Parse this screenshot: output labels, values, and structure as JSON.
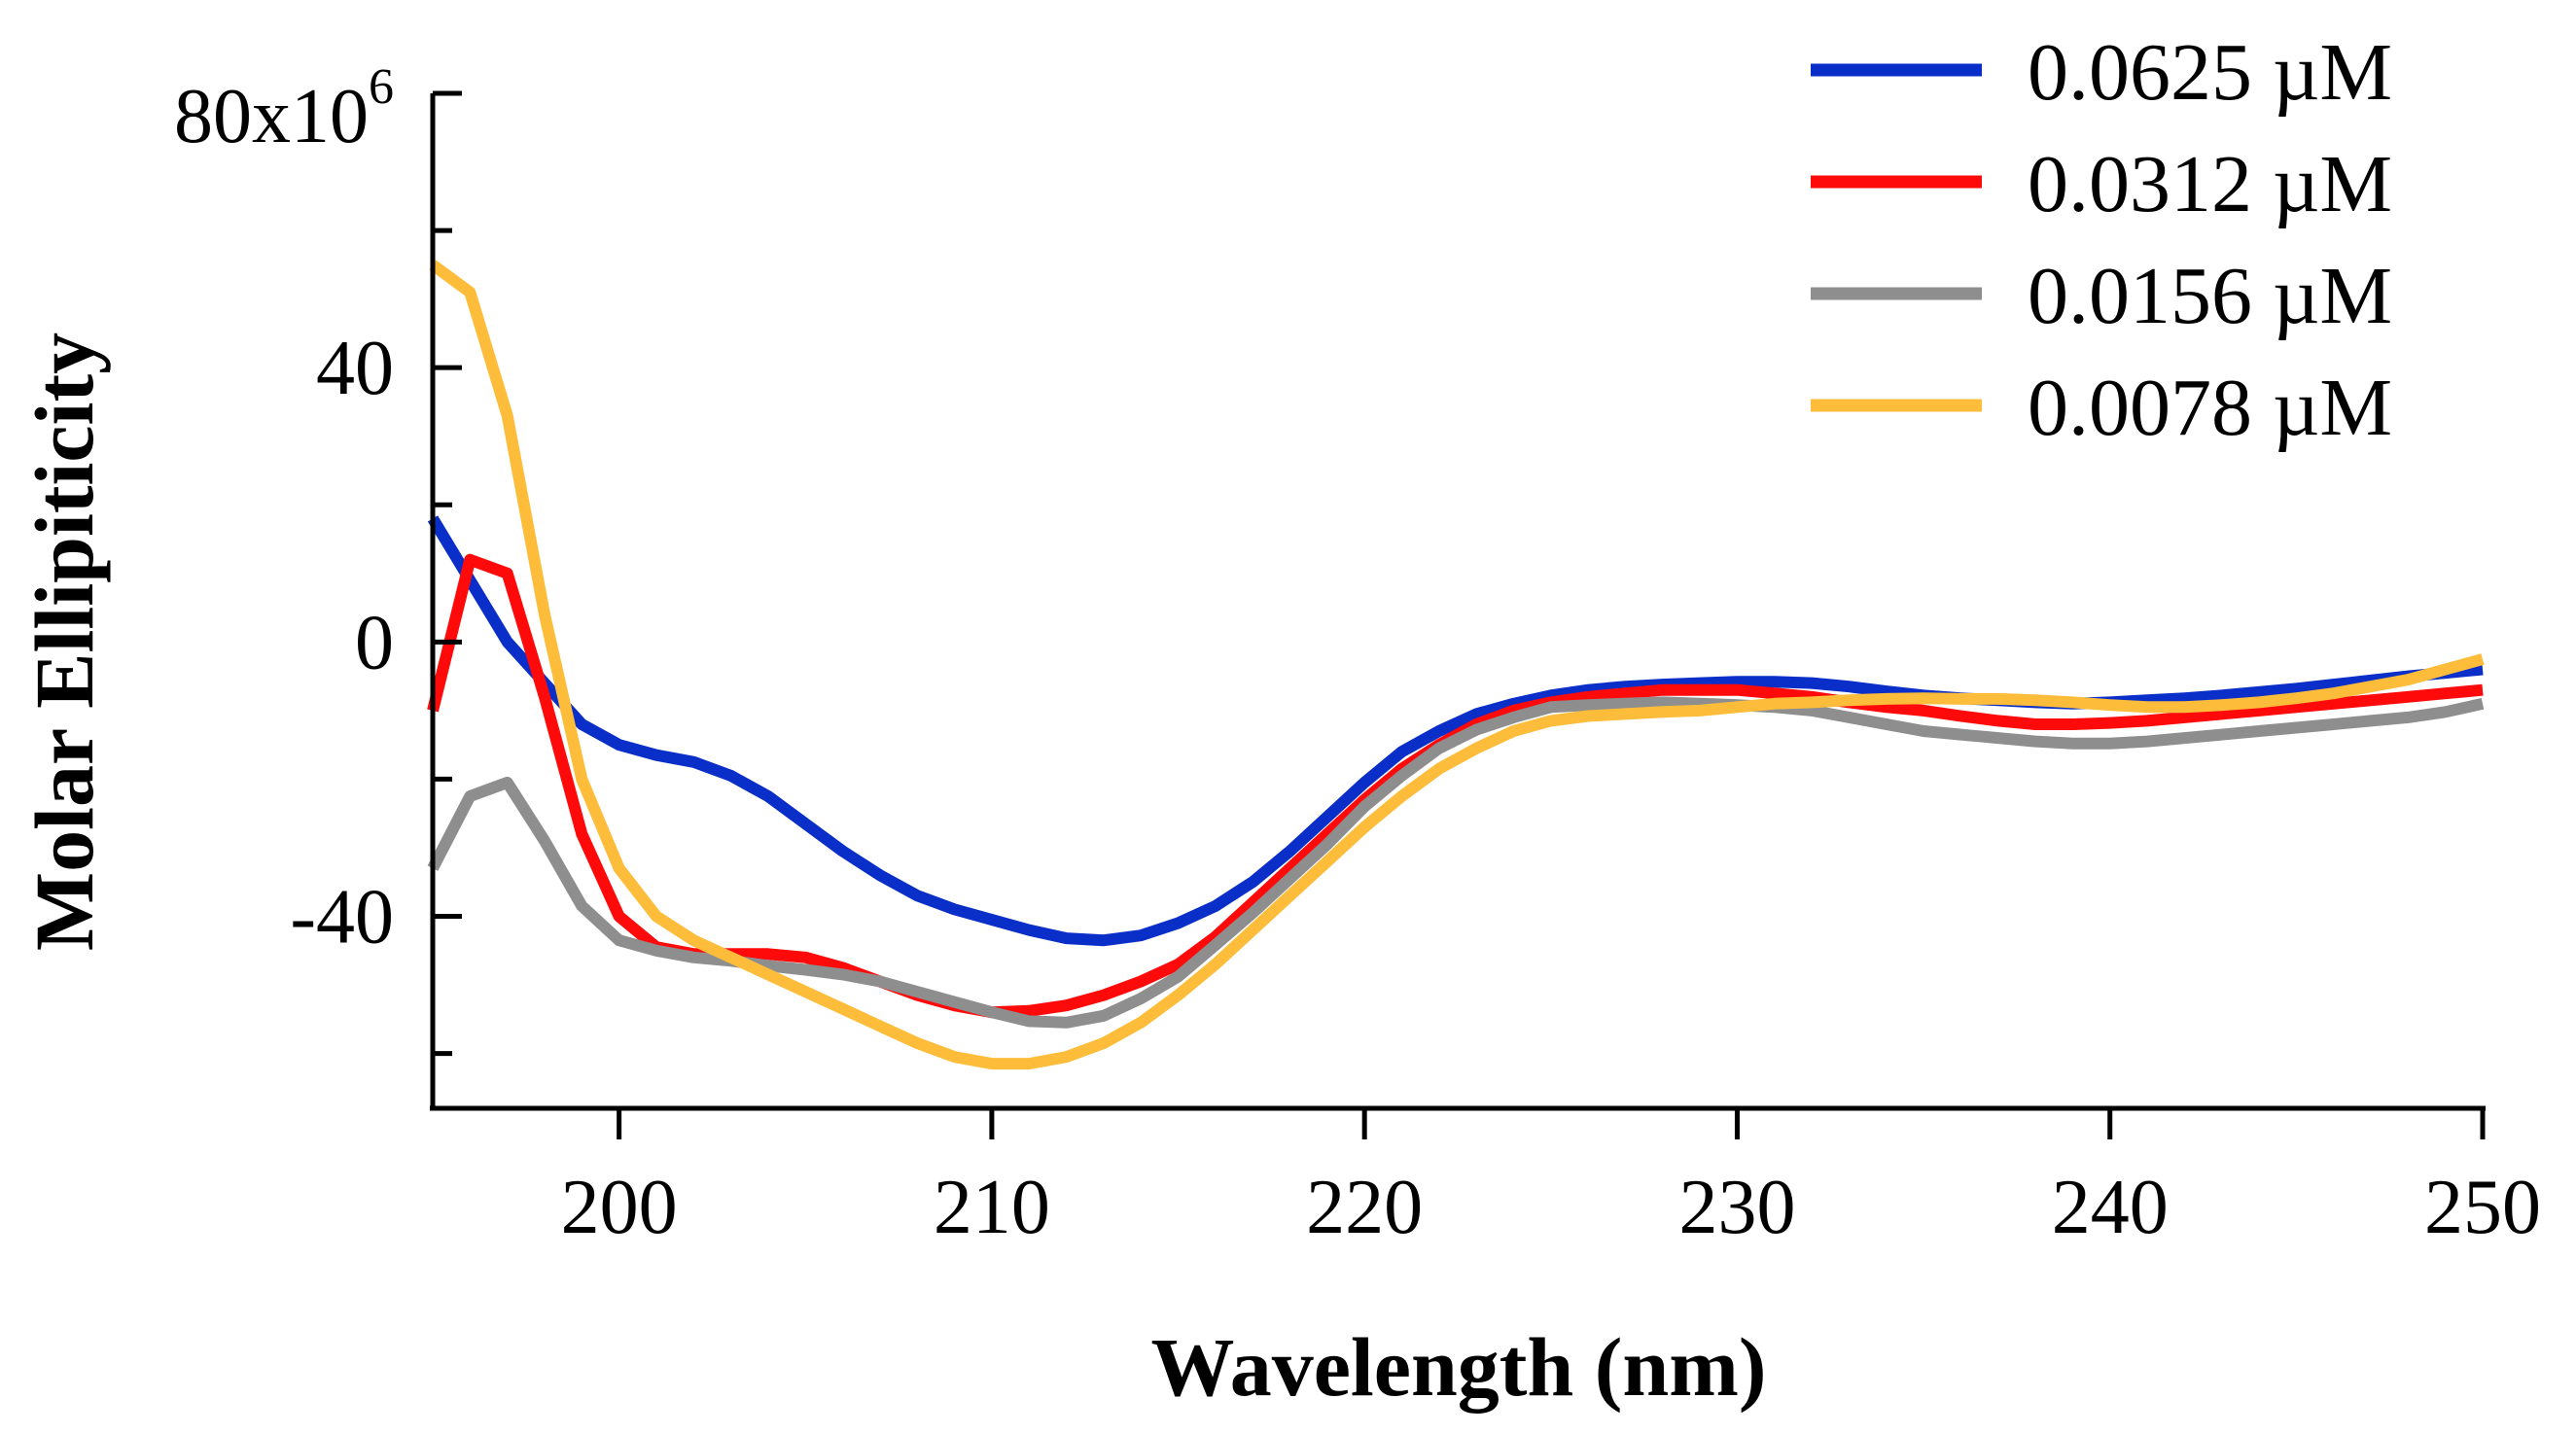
{
  "chart_data": {
    "type": "line",
    "title": "",
    "xlabel": "Wavelength (nm)",
    "ylabel": "Molar Ellipiticity",
    "xlim": [
      195,
      250
    ],
    "ylim": [
      -68,
      80
    ],
    "x_ticks": [
      200,
      210,
      220,
      230,
      240,
      250
    ],
    "x_tick_labels": [
      "200",
      "210",
      "220",
      "230",
      "240",
      "250"
    ],
    "y_ticks_labeled": [
      -40,
      0,
      40,
      80
    ],
    "y_tick_labels": [
      "-40",
      "0",
      "40",
      "80x10"
    ],
    "y_tick_exponent": "6",
    "y_ticks_minor": [
      -60,
      -20,
      20,
      60
    ],
    "legend_position": "top-right",
    "x": [
      195,
      196,
      197,
      198,
      199,
      200,
      201,
      202,
      203,
      204,
      205,
      206,
      207,
      208,
      209,
      210,
      211,
      212,
      213,
      214,
      215,
      216,
      217,
      218,
      219,
      220,
      221,
      222,
      223,
      224,
      225,
      226,
      227,
      228,
      229,
      230,
      231,
      232,
      233,
      234,
      235,
      236,
      237,
      238,
      239,
      240,
      241,
      242,
      243,
      244,
      245,
      246,
      247,
      248,
      249,
      250
    ],
    "series": [
      {
        "name": "0.0625 µM",
        "color": "#0a2ec8",
        "values": [
          18,
          9,
          0,
          -6,
          -12,
          -15,
          -16.5,
          -17.5,
          -19.5,
          -22.5,
          -26.5,
          -30.5,
          -34,
          -37,
          -39,
          -40.5,
          -42,
          -43.2,
          -43.5,
          -42.8,
          -41,
          -38.5,
          -35,
          -30.5,
          -25.5,
          -20.5,
          -16,
          -13,
          -10.5,
          -9,
          -7.8,
          -7,
          -6.5,
          -6.2,
          -6,
          -5.8,
          -5.8,
          -6,
          -6.5,
          -7.2,
          -7.8,
          -8.2,
          -8.5,
          -8.8,
          -9,
          -8.8,
          -8.5,
          -8.2,
          -7.8,
          -7.3,
          -6.8,
          -6.2,
          -5.6,
          -5,
          -4.5,
          -4
        ]
      },
      {
        "name": "0.0312 µM",
        "color": "#ff0a0a",
        "values": [
          -10,
          12,
          10,
          -8,
          -28,
          -40,
          -44.5,
          -45.5,
          -45.5,
          -45.5,
          -46,
          -47.5,
          -49.5,
          -51.5,
          -53,
          -54,
          -53.8,
          -53,
          -51.5,
          -49.5,
          -47,
          -43,
          -38,
          -33,
          -28,
          -23,
          -18.5,
          -15,
          -12,
          -10,
          -8.8,
          -8,
          -7.5,
          -7,
          -7,
          -7,
          -7.5,
          -8,
          -8.8,
          -9.5,
          -10,
          -10.8,
          -11.5,
          -12,
          -12,
          -11.8,
          -11.5,
          -11,
          -10.5,
          -10,
          -9.5,
          -9,
          -8.5,
          -8,
          -7.5,
          -7
        ]
      },
      {
        "name": "0.0156 µM",
        "color": "#8e8e8e",
        "values": [
          -33,
          -22.5,
          -20.5,
          -29,
          -38.5,
          -43.5,
          -45,
          -46,
          -46.5,
          -47.2,
          -47.8,
          -48.5,
          -49.5,
          -51,
          -52.5,
          -54,
          -55.3,
          -55.5,
          -54.5,
          -52,
          -48.8,
          -44.2,
          -39.5,
          -34.5,
          -29.5,
          -24,
          -19.5,
          -15.5,
          -12.8,
          -11,
          -9.5,
          -9.2,
          -9,
          -8.8,
          -9,
          -9.2,
          -9.5,
          -10,
          -11,
          -12,
          -13,
          -13.5,
          -14,
          -14.5,
          -14.8,
          -14.8,
          -14.5,
          -14,
          -13.5,
          -13,
          -12.5,
          -12,
          -11.5,
          -11,
          -10.2,
          -9
        ]
      },
      {
        "name": "0.0078 µM",
        "color": "#fdbd3a",
        "values": [
          55,
          51,
          33,
          4,
          -20,
          -33,
          -40,
          -43.5,
          -46,
          -48.5,
          -51,
          -53.5,
          -56,
          -58.5,
          -60.5,
          -61.5,
          -61.5,
          -60.5,
          -58.5,
          -55.5,
          -51.5,
          -47,
          -42,
          -37,
          -32,
          -27,
          -22.5,
          -18.5,
          -15.5,
          -13,
          -11.5,
          -10.8,
          -10.5,
          -10.2,
          -10,
          -9.5,
          -9,
          -8.8,
          -8.5,
          -8.3,
          -8.2,
          -8.3,
          -8.3,
          -8.5,
          -8.8,
          -9.2,
          -9.5,
          -9.5,
          -9.2,
          -8.8,
          -8.2,
          -7.5,
          -6.5,
          -5.5,
          -4,
          -2.5
        ]
      }
    ]
  }
}
